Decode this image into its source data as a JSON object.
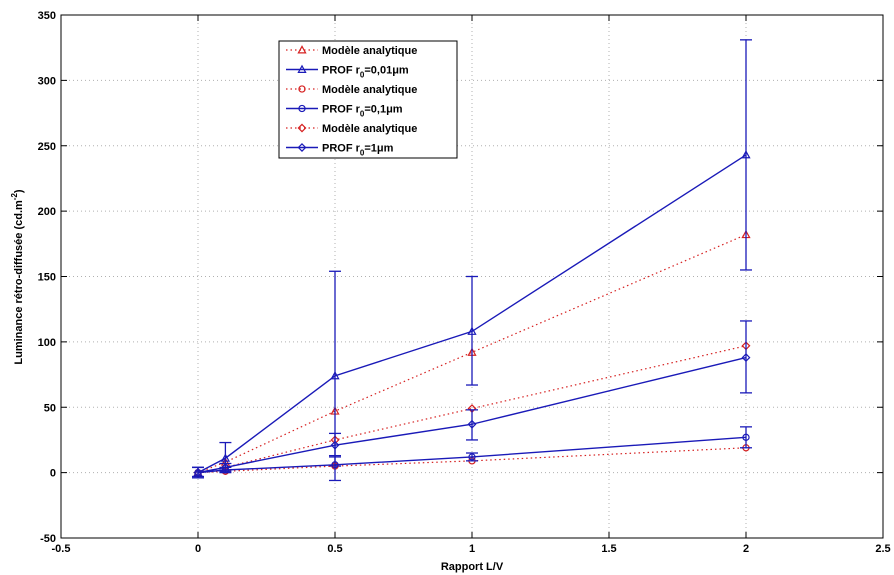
{
  "chart_data": {
    "type": "line",
    "xlabel": "Rapport L/V",
    "ylabel": "Luminance rétro-diffusée (cd.m",
    "ylabel_sup": "-2",
    "ylabel_close": ")",
    "xlim": [
      -0.5,
      2.5
    ],
    "ylim": [
      -50,
      350
    ],
    "xticks": [
      "-0.5",
      "0",
      "0.5",
      "1",
      "1.5",
      "2",
      "2.5"
    ],
    "yticks": [
      "-50",
      "0",
      "50",
      "100",
      "150",
      "200",
      "250",
      "300",
      "350"
    ],
    "grid": true,
    "legend_position": "top-left",
    "colors": {
      "analytic": "#d62020",
      "prof": "#1a1ab8"
    },
    "series": [
      {
        "name": "Modèle analytique",
        "kind": "analytic",
        "marker": "triangle",
        "x": [
          0,
          0.1,
          0.5,
          1,
          2
        ],
        "y": [
          0,
          8,
          47,
          92,
          182
        ]
      },
      {
        "name": "PROF r0=0,01µm",
        "kind": "prof",
        "marker": "triangle",
        "x": [
          0,
          0.1,
          0.5,
          1,
          2
        ],
        "y": [
          0,
          11,
          74,
          108,
          243
        ],
        "err_low": [
          -4,
          2,
          5,
          67,
          155
        ],
        "err_high": [
          4,
          23,
          154,
          150,
          331
        ]
      },
      {
        "name": "Modèle analytique",
        "kind": "analytic",
        "marker": "circle",
        "x": [
          0,
          0.1,
          0.5,
          1,
          2
        ],
        "y": [
          0,
          1,
          5,
          9,
          19
        ]
      },
      {
        "name": "PROF r0=0,1µm",
        "kind": "prof",
        "marker": "circle",
        "x": [
          0,
          0.1,
          0.5,
          1,
          2
        ],
        "y": [
          0,
          2,
          6,
          12,
          27
        ],
        "err_low": [
          -3,
          0,
          -6,
          9,
          19
        ],
        "err_high": [
          4,
          4,
          13,
          15,
          35
        ]
      },
      {
        "name": "Modèle analytique",
        "kind": "analytic",
        "marker": "diamond",
        "x": [
          0,
          0.1,
          0.5,
          1,
          2
        ],
        "y": [
          0,
          4,
          25,
          49,
          97
        ]
      },
      {
        "name": "PROF r0=1µm",
        "kind": "prof",
        "marker": "diamond",
        "x": [
          0,
          0.1,
          0.5,
          1,
          2
        ],
        "y": [
          0,
          4,
          21,
          37,
          88
        ],
        "err_low": [
          -3,
          1,
          12,
          25,
          61
        ],
        "err_high": [
          4,
          7,
          30,
          48,
          116
        ]
      }
    ],
    "legend": [
      {
        "text": "Modèle analytique",
        "sub": "",
        "tail": "",
        "kind": "analytic",
        "marker": "triangle"
      },
      {
        "text": "PROF r",
        "sub": "0",
        "tail": "=0,01μm",
        "kind": "prof",
        "marker": "triangle"
      },
      {
        "text": "Modèle analytique",
        "sub": "",
        "tail": "",
        "kind": "analytic",
        "marker": "circle"
      },
      {
        "text": "PROF r",
        "sub": "0",
        "tail": "=0,1μm",
        "kind": "prof",
        "marker": "circle"
      },
      {
        "text": "Modèle analytique",
        "sub": "",
        "tail": "",
        "kind": "analytic",
        "marker": "diamond"
      },
      {
        "text": "PROF r",
        "sub": "0",
        "tail": "=1μm",
        "kind": "prof",
        "marker": "diamond"
      }
    ]
  }
}
